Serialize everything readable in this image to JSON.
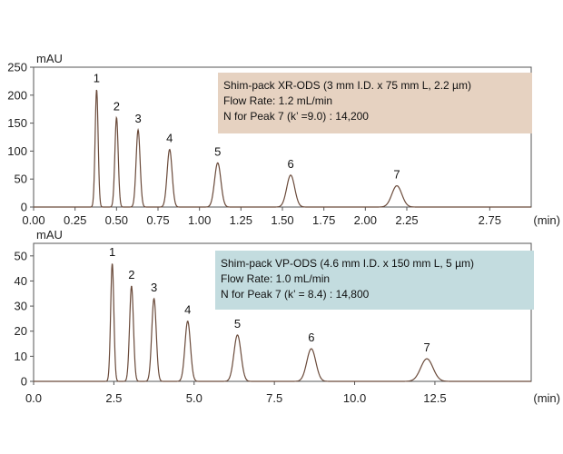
{
  "chart_data": [
    {
      "type": "line",
      "ylabel": "mAU",
      "xunit": "(min)",
      "xlim": [
        0,
        3.0
      ],
      "ylim": [
        0,
        250
      ],
      "yticks": [
        0,
        50,
        100,
        150,
        200,
        250
      ],
      "xticks": [
        "0.00",
        "0.25",
        "0.50",
        "0.75",
        "1.00",
        "1.25",
        "1.50",
        "1.75",
        "2.00",
        "2.25",
        "2.75"
      ],
      "xtick_values": [
        0,
        0.25,
        0.5,
        0.75,
        1.0,
        1.25,
        1.5,
        1.75,
        2.0,
        2.25,
        2.75
      ],
      "peaks": [
        {
          "label": "1",
          "t": 0.38,
          "height": 210,
          "width": 0.009
        },
        {
          "label": "2",
          "t": 0.5,
          "height": 160,
          "width": 0.01
        },
        {
          "label": "3",
          "t": 0.63,
          "height": 138,
          "width": 0.012
        },
        {
          "label": "4",
          "t": 0.82,
          "height": 103,
          "width": 0.015
        },
        {
          "label": "5",
          "t": 1.11,
          "height": 79,
          "width": 0.019
        },
        {
          "label": "6",
          "t": 1.55,
          "height": 57,
          "width": 0.024
        },
        {
          "label": "7",
          "t": 2.19,
          "height": 38,
          "width": 0.03
        }
      ],
      "info_lines": [
        "Shim-pack XR-ODS (3 mm I.D. x 75 mm L, 2.2 µm)",
        "Flow Rate: 1.2 mL/min",
        "N for Peak 7 (k’ =9.0) : 14,200"
      ],
      "info_color": "#e6d2c1"
    },
    {
      "type": "line",
      "ylabel": "mAU",
      "xunit": "(min)",
      "xlim": [
        0,
        15.5
      ],
      "ylim": [
        0,
        55
      ],
      "yticks": [
        0,
        10,
        20,
        30,
        40,
        50
      ],
      "xticks": [
        "0.0",
        "2.5",
        "5.0",
        "7.5",
        "10.0",
        "12.5"
      ],
      "xtick_values": [
        0,
        2.5,
        5.0,
        7.5,
        10.0,
        12.5
      ],
      "peaks": [
        {
          "label": "1",
          "t": 2.45,
          "height": 47,
          "width": 0.05
        },
        {
          "label": "2",
          "t": 3.05,
          "height": 38,
          "width": 0.06
        },
        {
          "label": "3",
          "t": 3.75,
          "height": 33,
          "width": 0.07
        },
        {
          "label": "4",
          "t": 4.8,
          "height": 24,
          "width": 0.085
        },
        {
          "label": "5",
          "t": 6.35,
          "height": 18.5,
          "width": 0.11
        },
        {
          "label": "6",
          "t": 8.65,
          "height": 13,
          "width": 0.14
        },
        {
          "label": "7",
          "t": 12.25,
          "height": 9,
          "width": 0.19
        }
      ],
      "info_lines": [
        "Shim-pack VP-ODS (4.6 mm I.D. x 150 mm L, 5 µm)",
        "Flow Rate: 1.0 mL/min",
        "N for Peak 7 (k’ = 8.4) : 14,800"
      ],
      "info_color": "#c3dcdf"
    }
  ]
}
